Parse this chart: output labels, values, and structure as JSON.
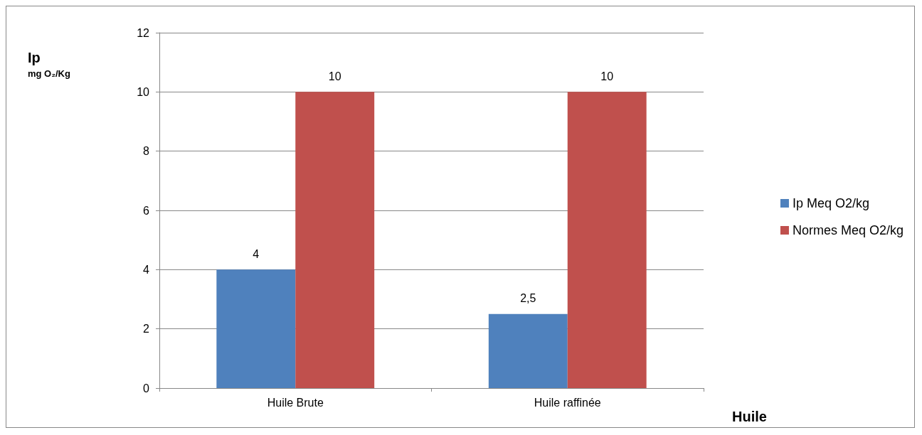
{
  "chart_data": {
    "type": "bar",
    "xlabel": "Huile",
    "ylabel": "Ip\nmg O₂/Kg",
    "categories": [
      "Huile Brute",
      "Huile raffinée"
    ],
    "series": [
      {
        "name": "Ip Meq O2/kg",
        "color": "#4f81bd",
        "values": [
          4,
          2.5
        ],
        "value_labels": [
          "4",
          "2,5"
        ]
      },
      {
        "name": "Normes Meq O2/kg",
        "color": "#c0504d",
        "values": [
          10,
          10
        ],
        "value_labels": [
          "10",
          "10"
        ]
      }
    ],
    "ylim": [
      0,
      12
    ],
    "yticks": [
      0,
      2,
      4,
      6,
      8,
      10,
      12
    ],
    "grid": "y",
    "legend": "right"
  }
}
